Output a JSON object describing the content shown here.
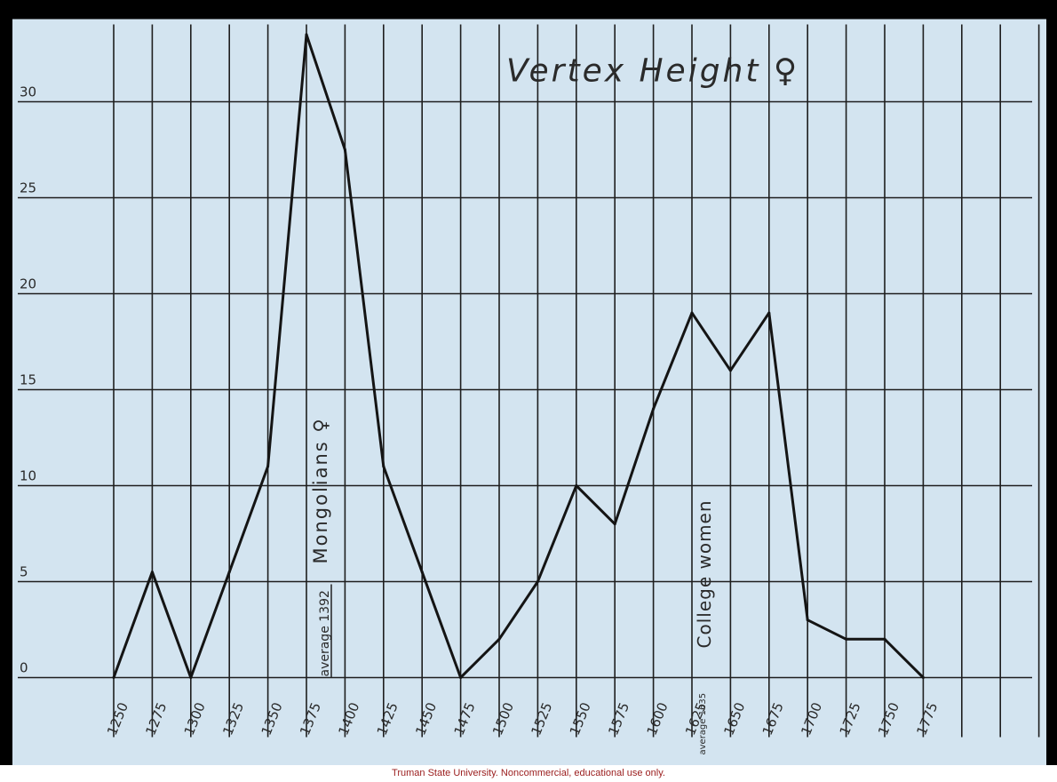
{
  "chart_data": {
    "type": "line",
    "title": "Vertex Height ♀",
    "xlabel": "",
    "ylabel": "",
    "x_ticks": [
      "1250",
      "1275",
      "1300",
      "1325",
      "1350",
      "1375",
      "1400",
      "1425",
      "1450",
      "1475",
      "1500",
      "1525",
      "1550",
      "1575",
      "1600",
      "1625",
      "1650",
      "1675",
      "1700",
      "1725",
      "1750",
      "1775"
    ],
    "y_ticks": [
      "0",
      "5",
      "10",
      "15",
      "20",
      "25",
      "30"
    ],
    "xlim": [
      1250,
      1775
    ],
    "ylim": [
      0,
      33.5
    ],
    "grid": true,
    "series": [
      {
        "name": "",
        "x": [
          1250,
          1275,
          1300,
          1325,
          1350,
          1375,
          1400,
          1425,
          1450,
          1475,
          1500,
          1525,
          1550,
          1575,
          1600,
          1625,
          1650,
          1675,
          1700,
          1725,
          1750,
          1775
        ],
        "values": [
          0,
          5.5,
          0,
          5.5,
          11,
          33.5,
          27.5,
          11,
          5.5,
          0,
          2,
          5,
          10,
          8,
          14,
          19,
          16,
          19,
          3,
          2,
          2,
          0
        ]
      }
    ],
    "annotations": [
      {
        "text": "Mongolians ♀",
        "orientation": "vertical"
      },
      {
        "text": "average 1392",
        "orientation": "vertical"
      },
      {
        "text": "College women",
        "orientation": "vertical"
      },
      {
        "text": "average 1635",
        "orientation": "vertical"
      }
    ],
    "colors": {
      "paper": "#d3e4f0",
      "ink": "#1c1c1c"
    }
  },
  "caption": "Truman State University.  Noncommercial, educational use only."
}
